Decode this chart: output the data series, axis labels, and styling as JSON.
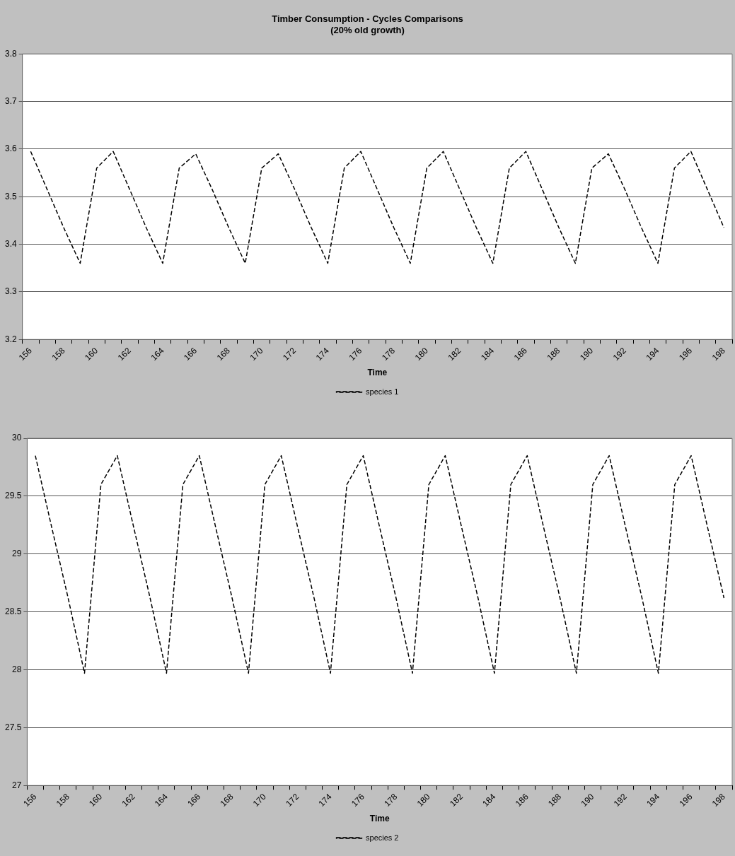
{
  "chart_data": [
    {
      "type": "line",
      "title": "Timber Consumption - Cycles Comparisons\n(20% old growth)",
      "xlabel": "Time",
      "categories": [
        "156",
        null,
        "158",
        null,
        "160",
        null,
        "162",
        null,
        "164",
        null,
        "166",
        null,
        "168",
        null,
        "170",
        null,
        "172",
        null,
        "174",
        null,
        "176",
        null,
        "178",
        null,
        "180",
        null,
        "182",
        null,
        "184",
        null,
        "186",
        null,
        "188",
        null,
        "190",
        null,
        "192",
        null,
        "194",
        null,
        "196",
        null,
        "198"
      ],
      "series": [
        {
          "name": "species 1",
          "color": "#000000",
          "values": [
            3.595,
            3.515,
            3.435,
            3.36,
            3.56,
            3.595,
            3.515,
            3.435,
            3.36,
            3.56,
            3.59,
            3.515,
            3.435,
            3.36,
            3.56,
            3.59,
            3.515,
            3.435,
            3.36,
            3.56,
            3.595,
            3.515,
            3.435,
            3.36,
            3.56,
            3.595,
            3.515,
            3.435,
            3.36,
            3.56,
            3.595,
            3.515,
            3.435,
            3.36,
            3.56,
            3.59,
            3.515,
            3.435,
            3.36,
            3.56,
            3.595,
            3.515,
            3.435
          ]
        }
      ],
      "ylim": [
        3.2,
        3.8
      ],
      "yticks": [
        3.2,
        3.3,
        3.4,
        3.5,
        3.6,
        3.7,
        3.8
      ],
      "grid": "y",
      "legend": "bottom",
      "line_style": "dashed",
      "marker": "none"
    },
    {
      "type": "line",
      "xlabel": "Time",
      "categories": [
        "156",
        null,
        "158",
        null,
        "160",
        null,
        "162",
        null,
        "164",
        null,
        "166",
        null,
        "168",
        null,
        "170",
        null,
        "172",
        null,
        "174",
        null,
        "176",
        null,
        "178",
        null,
        "180",
        null,
        "182",
        null,
        "184",
        null,
        "186",
        null,
        "188",
        null,
        "190",
        null,
        "192",
        null,
        "194",
        null,
        "196",
        null,
        "198"
      ],
      "series": [
        {
          "name": "species 2",
          "color": "#000000",
          "values": [
            29.85,
            29.23,
            28.62,
            27.97,
            29.6,
            29.85,
            29.23,
            28.62,
            27.97,
            29.6,
            29.85,
            29.23,
            28.62,
            27.97,
            29.6,
            29.85,
            29.23,
            28.62,
            27.97,
            29.6,
            29.85,
            29.23,
            28.62,
            27.97,
            29.6,
            29.85,
            29.23,
            28.62,
            27.97,
            29.6,
            29.85,
            29.23,
            28.62,
            27.97,
            29.6,
            29.85,
            29.23,
            28.62,
            27.97,
            29.6,
            29.85,
            29.23,
            28.62
          ]
        }
      ],
      "ylim": [
        27,
        30
      ],
      "yticks": [
        27,
        27.5,
        28,
        28.5,
        29,
        29.5,
        30
      ],
      "grid": "y",
      "legend": "bottom",
      "line_style": "dashed",
      "marker": "none"
    }
  ]
}
